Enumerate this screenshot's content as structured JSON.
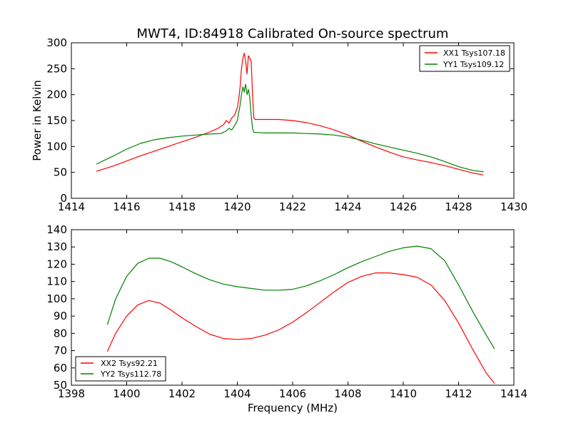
{
  "chart_data": [
    {
      "type": "line",
      "title": "MWT4, ID:84918 Calibrated On-source spectrum",
      "xlabel": "",
      "ylabel": "Power in Kelvin",
      "xlim": [
        1414,
        1430
      ],
      "ylim": [
        0,
        300
      ],
      "xticks": [
        "1414",
        "1416",
        "1418",
        "1420",
        "1422",
        "1424",
        "1426",
        "1428",
        "1430"
      ],
      "yticks": [
        "0",
        "50",
        "100",
        "150",
        "200",
        "250",
        "300"
      ],
      "grid": false,
      "legend_position": "upper right",
      "series": [
        {
          "name": "XX1 Tsys107.18",
          "color": "#ff0000",
          "x": [
            1414.9,
            1415.5,
            1416,
            1416.5,
            1417,
            1417.5,
            1418,
            1418.5,
            1419,
            1419.3,
            1419.5,
            1419.6,
            1419.7,
            1419.8,
            1419.9,
            1420.0,
            1420.05,
            1420.1,
            1420.15,
            1420.2,
            1420.25,
            1420.3,
            1420.35,
            1420.4,
            1420.45,
            1420.5,
            1420.55,
            1420.6,
            1420.65,
            1420.7,
            1421,
            1421.5,
            1422,
            1422.5,
            1423,
            1423.5,
            1424,
            1424.5,
            1425,
            1425.5,
            1426,
            1426.5,
            1427,
            1427.5,
            1428,
            1428.5,
            1428.9
          ],
          "values": [
            52,
            62,
            72,
            82,
            91,
            100,
            109,
            118,
            128,
            135,
            142,
            150,
            145,
            155,
            160,
            175,
            190,
            215,
            250,
            270,
            280,
            265,
            240,
            275,
            270,
            265,
            200,
            155,
            152,
            152,
            152,
            152,
            150,
            146,
            140,
            132,
            122,
            110,
            99,
            89,
            80,
            74,
            69,
            63,
            56,
            49,
            45
          ]
        },
        {
          "name": "YY1 Tsys109.12",
          "color": "#008000",
          "x": [
            1414.9,
            1415.5,
            1416,
            1416.5,
            1417,
            1417.5,
            1418,
            1418.5,
            1419,
            1419.4,
            1419.6,
            1419.7,
            1419.8,
            1419.9,
            1420.0,
            1420.05,
            1420.1,
            1420.15,
            1420.2,
            1420.25,
            1420.3,
            1420.35,
            1420.4,
            1420.45,
            1420.5,
            1420.55,
            1420.6,
            1420.7,
            1421,
            1421.5,
            1422,
            1422.5,
            1423,
            1423.5,
            1424,
            1424.5,
            1425,
            1425.5,
            1426,
            1426.5,
            1427,
            1427.5,
            1428,
            1428.5,
            1428.9
          ],
          "values": [
            66,
            81,
            95,
            106,
            113,
            117,
            120,
            122,
            124,
            125,
            130,
            135,
            132,
            140,
            150,
            165,
            180,
            200,
            215,
            205,
            220,
            200,
            210,
            195,
            160,
            135,
            127,
            127,
            126,
            126,
            126,
            125,
            124,
            122,
            118,
            112,
            105,
            99,
            93,
            87,
            80,
            71,
            61,
            54,
            51
          ]
        }
      ]
    },
    {
      "type": "line",
      "title": "",
      "xlabel": "Frequency (MHz)",
      "ylabel": "",
      "xlim": [
        1398,
        1414
      ],
      "ylim": [
        50,
        140
      ],
      "xticks": [
        "1398",
        "1400",
        "1402",
        "1404",
        "1406",
        "1408",
        "1410",
        "1412",
        "1414"
      ],
      "yticks": [
        "50",
        "60",
        "70",
        "80",
        "90",
        "100",
        "110",
        "120",
        "130",
        "140"
      ],
      "grid": false,
      "legend_position": "lower left",
      "series": [
        {
          "name": "XX2 Tsys92.21",
          "color": "#ff0000",
          "x": [
            1399.3,
            1399.6,
            1400.0,
            1400.4,
            1400.8,
            1401.2,
            1401.6,
            1402.0,
            1402.5,
            1403.0,
            1403.5,
            1404.0,
            1404.5,
            1405.0,
            1405.5,
            1406.0,
            1406.5,
            1407.0,
            1407.5,
            1408.0,
            1408.5,
            1409.0,
            1409.5,
            1410.0,
            1410.5,
            1411.0,
            1411.5,
            1412.0,
            1412.5,
            1413.0,
            1413.3
          ],
          "values": [
            69.5,
            80,
            90,
            96.5,
            99,
            97.5,
            93.5,
            89,
            84,
            79.5,
            77,
            76.5,
            77,
            79,
            82,
            86.5,
            92,
            98,
            104,
            109.5,
            113,
            115,
            115,
            114,
            112.5,
            108,
            99,
            86,
            71,
            57,
            51
          ]
        },
        {
          "name": "YY2 Tsys112.78",
          "color": "#008000",
          "x": [
            1399.3,
            1399.6,
            1400.0,
            1400.4,
            1400.8,
            1401.2,
            1401.6,
            1402.0,
            1402.5,
            1403.0,
            1403.5,
            1404.0,
            1404.5,
            1405.0,
            1405.5,
            1406.0,
            1406.5,
            1407.0,
            1407.5,
            1408.0,
            1408.5,
            1409.0,
            1409.5,
            1410.0,
            1410.5,
            1411.0,
            1411.5,
            1412.0,
            1412.5,
            1413.0,
            1413.3
          ],
          "values": [
            85,
            100,
            113,
            120.5,
            123.5,
            123.5,
            121.5,
            118.5,
            114.5,
            111,
            108.5,
            107,
            106,
            105,
            105,
            105.5,
            107.5,
            110.5,
            114,
            118,
            121.5,
            124.5,
            127.5,
            129.5,
            130.5,
            129,
            122,
            108,
            93,
            79,
            71
          ]
        }
      ]
    }
  ]
}
